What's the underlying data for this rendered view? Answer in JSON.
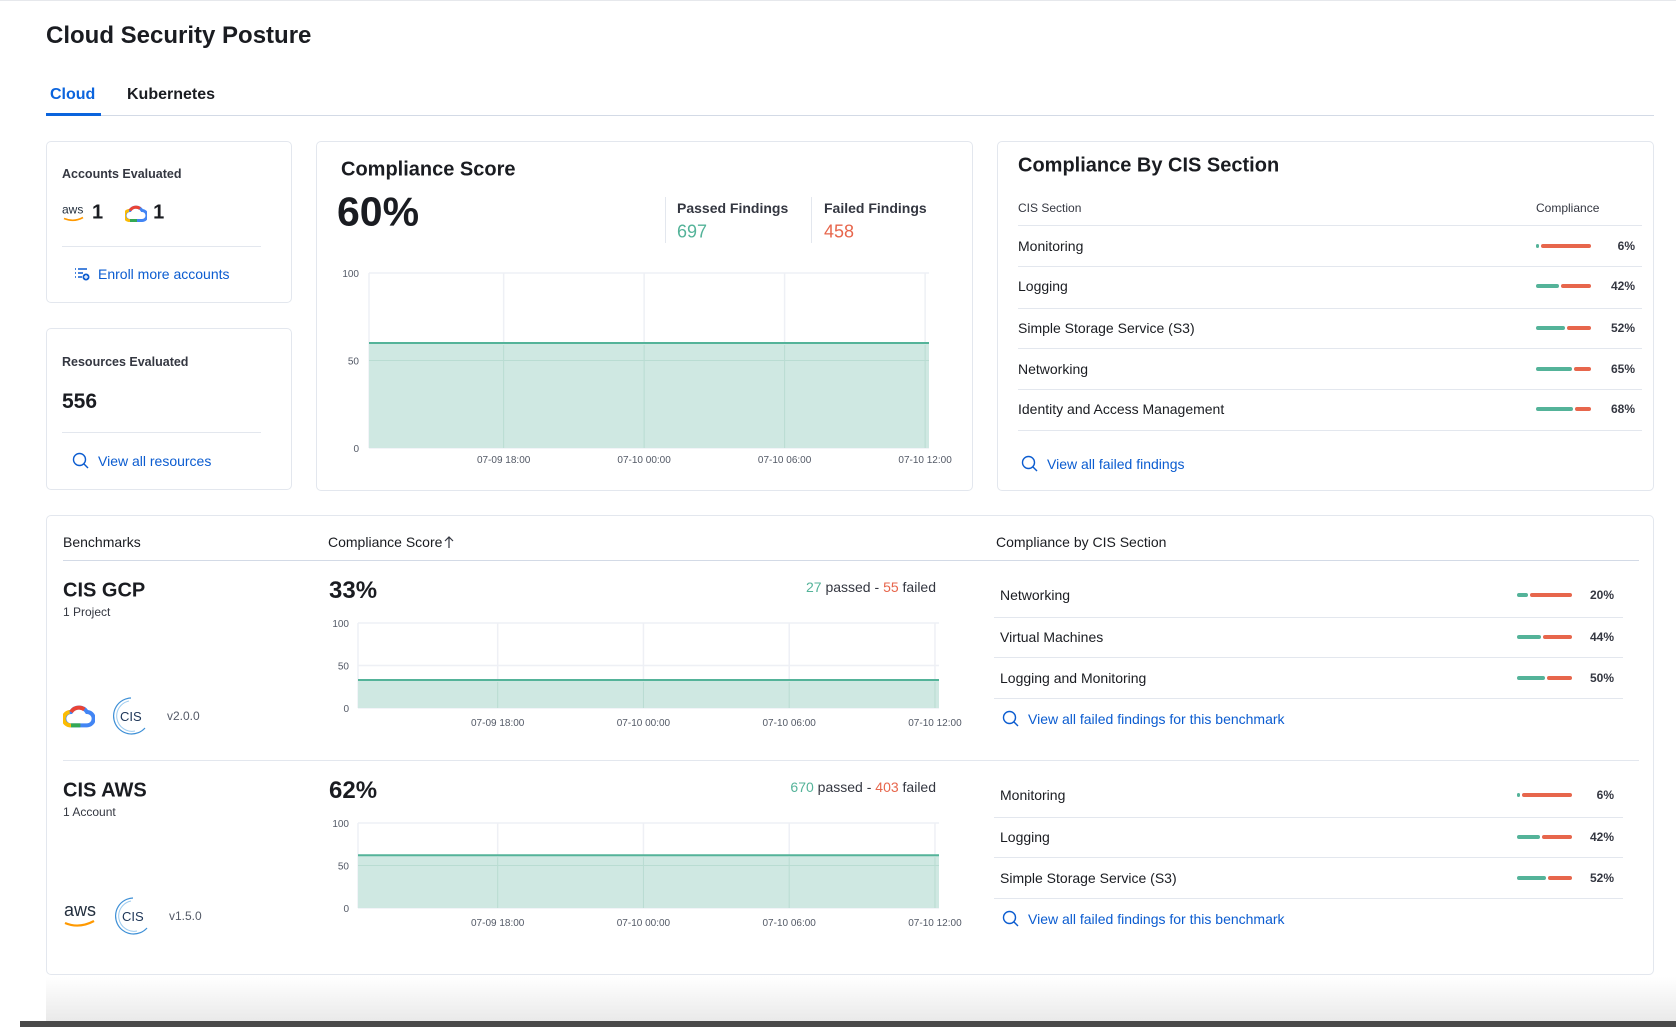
{
  "page": {
    "title": "Cloud Security Posture",
    "tabs": [
      {
        "label": "Cloud",
        "active": true
      },
      {
        "label": "Kubernetes",
        "active": false
      }
    ]
  },
  "accounts": {
    "label": "Accounts Evaluated",
    "aws_count": "1",
    "gcp_count": "1",
    "link": "Enroll more accounts"
  },
  "resources": {
    "label": "Resources Evaluated",
    "count": "556",
    "link": "View all resources"
  },
  "compliance": {
    "title": "Compliance Score",
    "score": "60%",
    "passed_label": "Passed Findings",
    "passed": "697",
    "failed_label": "Failed Findings",
    "failed": "458"
  },
  "cis": {
    "title": "Compliance By CIS Section",
    "col_section": "CIS Section",
    "col_compliance": "Compliance",
    "rows": [
      {
        "name": "Monitoring",
        "value": 6,
        "label": "6%"
      },
      {
        "name": "Logging",
        "value": 42,
        "label": "42%"
      },
      {
        "name": "Simple Storage Service (S3)",
        "value": 52,
        "label": "52%"
      },
      {
        "name": "Networking",
        "value": 65,
        "label": "65%"
      },
      {
        "name": "Identity and Access Management",
        "value": 68,
        "label": "68%"
      }
    ],
    "link": "View all failed findings"
  },
  "benchmarks": {
    "col_benchmarks": "Benchmarks",
    "col_score": "Compliance Score",
    "sort_icon": "arrow-up",
    "col_sections": "Compliance by CIS Section",
    "items": [
      {
        "name": "CIS GCP",
        "subtitle": "1 Project",
        "provider": "gcp",
        "version": "v2.0.0",
        "score": "33%",
        "passed": "27",
        "passed_word": "passed",
        "dash": "-",
        "failed": "55",
        "failed_word": "failed",
        "sections": [
          {
            "name": "Networking",
            "value": 20,
            "label": "20%"
          },
          {
            "name": "Virtual Machines",
            "value": 44,
            "label": "44%"
          },
          {
            "name": "Logging and Monitoring",
            "value": 50,
            "label": "50%"
          }
        ],
        "link": "View all failed findings for this benchmark"
      },
      {
        "name": "CIS AWS",
        "subtitle": "1 Account",
        "provider": "aws",
        "version": "v1.5.0",
        "score": "62%",
        "passed": "670",
        "passed_word": "passed",
        "dash": "-",
        "failed": "403",
        "failed_word": "failed",
        "sections": [
          {
            "name": "Monitoring",
            "value": 6,
            "label": "6%"
          },
          {
            "name": "Logging",
            "value": 42,
            "label": "42%"
          },
          {
            "name": "Simple Storage Service (S3)",
            "value": 52,
            "label": "52%"
          }
        ],
        "link": "View all failed findings for this benchmark"
      }
    ]
  },
  "colors": {
    "passed": "#54b399",
    "failed": "#e7664c",
    "area": "#cce7e0",
    "link": "#0b5cd0",
    "accent": "#0b64dd"
  },
  "chart_data": [
    {
      "type": "area",
      "ylim": [
        0,
        100
      ],
      "yticks": [
        "0",
        "50",
        "100"
      ],
      "xticks": [
        "07-09 18:00",
        "07-10 00:00",
        "07-10 06:00",
        "07-10 12:00"
      ],
      "xlim": [
        "07-09 12:15",
        "07-10 12:10"
      ],
      "grid": true,
      "points": [
        {
          "x": "07-09 12:15",
          "y": 60
        },
        {
          "x": "07-10 12:10",
          "y": 60
        }
      ]
    },
    {
      "type": "area",
      "ylim": [
        0,
        100
      ],
      "yticks": [
        "0",
        "50",
        "100"
      ],
      "xticks": [
        "07-09 18:00",
        "07-10 00:00",
        "07-10 06:00",
        "07-10 12:00"
      ],
      "xlim": [
        "07-09 12:15",
        "07-10 12:10"
      ],
      "grid": true,
      "points": [
        {
          "x": "07-09 12:15",
          "y": 33
        },
        {
          "x": "07-10 12:10",
          "y": 33
        }
      ]
    },
    {
      "type": "area",
      "ylim": [
        0,
        100
      ],
      "yticks": [
        "0",
        "50",
        "100"
      ],
      "xticks": [
        "07-09 18:00",
        "07-10 00:00",
        "07-10 06:00",
        "07-10 12:00"
      ],
      "xlim": [
        "07-09 12:15",
        "07-10 12:10"
      ],
      "grid": true,
      "points": [
        {
          "x": "07-09 12:15",
          "y": 62
        },
        {
          "x": "07-10 12:10",
          "y": 62
        }
      ]
    }
  ]
}
